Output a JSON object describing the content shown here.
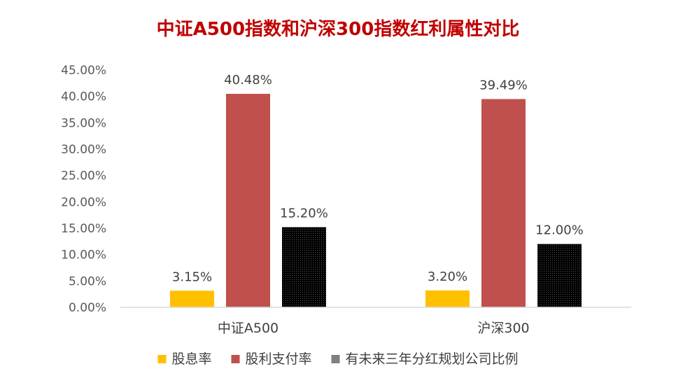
{
  "chart_data": {
    "type": "bar",
    "title": "中证A500指数和沪深300指数红利属性对比",
    "xlabel": "",
    "ylabel": "",
    "categories": [
      "中证A500",
      "沪深300"
    ],
    "series": [
      {
        "name": "股息率",
        "color": "#FFC000",
        "values": [
          3.15,
          3.2
        ],
        "labels": [
          "3.15%",
          "3.20%"
        ]
      },
      {
        "name": "股利支付率",
        "color": "#C0504D",
        "values": [
          40.48,
          39.49
        ],
        "labels": [
          "40.48%",
          "39.49%"
        ]
      },
      {
        "name": "有未来三年分红规划公司比例",
        "color": "#7F7F7F",
        "values": [
          15.2,
          12.0
        ],
        "labels": [
          "15.20%",
          "12.00%"
        ]
      }
    ],
    "ylim": [
      0,
      45
    ],
    "yticks": [
      0,
      5,
      10,
      15,
      20,
      25,
      30,
      35,
      40,
      45
    ],
    "ytick_labels": [
      "0.00%",
      "5.00%",
      "10.00%",
      "15.00%",
      "20.00%",
      "25.00%",
      "30.00%",
      "35.00%",
      "40.00%",
      "45.00%"
    ],
    "grid": false,
    "legend_position": "bottom",
    "title_color": "#C00000",
    "hatched_bars": true
  }
}
